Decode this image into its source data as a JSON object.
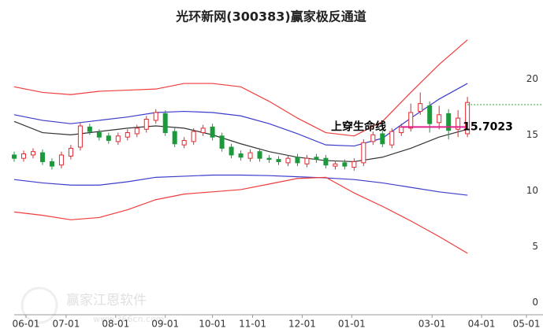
{
  "chart_data": {
    "type": "candlestick",
    "title": "光环新网(300383)赢家极反通道",
    "x": [
      0,
      4,
      8,
      12,
      16,
      20,
      24,
      28,
      32,
      36,
      40,
      44,
      48,
      52,
      56,
      60,
      64,
      68,
      72,
      76,
      80,
      84,
      88,
      92,
      96,
      100,
      104,
      108,
      112,
      116,
      120,
      124,
      128,
      132,
      136,
      140,
      144,
      148,
      152,
      156,
      160,
      164,
      168,
      172,
      176,
      180,
      184,
      188,
      192
    ],
    "open": [
      13.2,
      12.9,
      13.2,
      13.4,
      12.6,
      12.3,
      13.1,
      13.9,
      15.7,
      15.2,
      14.9,
      14.4,
      14.8,
      15.1,
      15.5,
      16.3,
      16.9,
      15.3,
      14.1,
      14.4,
      15.2,
      15.7,
      14.9,
      13.9,
      13.3,
      12.9,
      13.5,
      12.9,
      12.8,
      12.5,
      13.0,
      12.4,
      13.0,
      12.9,
      12.2,
      12.5,
      12.1,
      12.5,
      14.4,
      15.1,
      14.1,
      15.2,
      15.6,
      17.1,
      17.6,
      16.1,
      16.9,
      15.5,
      15.1
    ],
    "high": [
      13.5,
      13.6,
      13.8,
      13.7,
      12.9,
      13.5,
      14.1,
      16.1,
      16.0,
      15.5,
      15.2,
      15.2,
      15.5,
      15.9,
      16.7,
      17.3,
      17.2,
      15.6,
      14.8,
      15.6,
      15.9,
      16.0,
      15.2,
      14.2,
      13.6,
      13.7,
      13.8,
      13.2,
      13.1,
      13.2,
      13.3,
      13.2,
      13.3,
      13.2,
      12.7,
      12.8,
      12.9,
      14.6,
      15.3,
      15.4,
      15.6,
      16.0,
      17.8,
      18.8,
      18.0,
      17.6,
      17.3,
      17.2,
      18.4
    ],
    "low": [
      12.6,
      12.6,
      12.9,
      12.3,
      11.9,
      12.0,
      12.8,
      13.6,
      15.0,
      14.5,
      14.2,
      14.1,
      14.5,
      14.8,
      15.2,
      16.0,
      14.9,
      13.9,
      13.8,
      14.1,
      14.9,
      14.5,
      13.5,
      12.9,
      12.7,
      12.6,
      12.6,
      12.5,
      12.3,
      12.2,
      12.2,
      12.1,
      12.5,
      12.0,
      11.9,
      11.9,
      11.8,
      12.2,
      14.1,
      13.9,
      13.8,
      14.9,
      15.3,
      16.8,
      15.2,
      15.5,
      14.6,
      14.8,
      14.8
    ],
    "close": [
      12.9,
      13.3,
      13.5,
      12.6,
      12.2,
      13.2,
      13.8,
      15.8,
      15.3,
      14.8,
      14.5,
      14.9,
      15.2,
      15.6,
      16.4,
      17.0,
      15.2,
      14.2,
      14.5,
      15.3,
      15.6,
      14.8,
      13.8,
      13.2,
      13.0,
      13.4,
      12.9,
      12.8,
      12.6,
      12.9,
      12.5,
      12.9,
      12.8,
      12.3,
      12.4,
      12.2,
      12.6,
      14.3,
      15.0,
      14.2,
      15.3,
      15.7,
      17.0,
      17.8,
      16.0,
      16.8,
      15.4,
      16.5,
      17.9
    ],
    "up_color": "#e8262e",
    "down_color": "#1a9a3a",
    "bands": {
      "x": [
        0,
        12,
        24,
        36,
        48,
        60,
        72,
        84,
        96,
        108,
        120,
        132,
        144,
        156,
        168,
        180,
        192
      ],
      "series": [
        {
          "color": "#f03c3c",
          "values": [
            19.3,
            18.8,
            18.6,
            18.9,
            19.0,
            19.1,
            19.6,
            19.6,
            19.3,
            18.0,
            16.5,
            15.2,
            14.9,
            16.2,
            18.8,
            21.3,
            23.5
          ]
        },
        {
          "color": "#3c3ccc",
          "values": [
            16.8,
            16.3,
            16.0,
            16.3,
            16.6,
            17.0,
            17.1,
            17.0,
            16.7,
            16.0,
            15.1,
            14.1,
            14.0,
            14.7,
            16.5,
            18.2,
            19.6
          ]
        },
        {
          "color": "#333333",
          "values": [
            16.2,
            15.2,
            15.0,
            15.3,
            15.6,
            15.8,
            15.6,
            15.0,
            14.2,
            13.5,
            13.0,
            12.7,
            12.6,
            13.0,
            13.8,
            14.8,
            15.5
          ]
        },
        {
          "color": "#3c3ccc",
          "values": [
            11.0,
            10.7,
            10.5,
            10.5,
            10.8,
            11.2,
            11.3,
            11.4,
            11.4,
            11.35,
            11.25,
            11.15,
            11.0,
            10.7,
            10.3,
            9.9,
            9.6
          ]
        },
        {
          "color": "#f03c3c",
          "values": [
            8.1,
            7.8,
            7.4,
            7.6,
            8.3,
            9.2,
            9.7,
            9.9,
            10.1,
            10.6,
            11.1,
            11.2,
            9.8,
            8.6,
            7.3,
            5.9,
            4.4
          ]
        }
      ]
    },
    "level": 15.7023,
    "level_color": "#e0208c",
    "resistance": 17.7,
    "resistance_color": "#2a9d2a",
    "annotation": "上穿生命线",
    "watermark": "赢家江恩软件",
    "watermark_url": "www.366cn.com",
    "xlim": [
      0,
      224
    ],
    "xticks": [
      {
        "value": 5,
        "label": "06-01"
      },
      {
        "value": 22,
        "label": "07-01"
      },
      {
        "value": 43,
        "label": "08-01"
      },
      {
        "value": 64,
        "label": "09-01"
      },
      {
        "value": 84,
        "label": "10-01"
      },
      {
        "value": 101,
        "label": "11-01"
      },
      {
        "value": 122,
        "label": "12-01"
      },
      {
        "value": 143,
        "label": "01-01"
      },
      {
        "value": 177,
        "label": "03-01"
      },
      {
        "value": 198,
        "label": "04-01"
      },
      {
        "value": 217,
        "label": "05-01"
      }
    ],
    "ylim": [
      -1.1,
      23.9
    ],
    "yticks": [
      0,
      5,
      10,
      15,
      20
    ]
  }
}
